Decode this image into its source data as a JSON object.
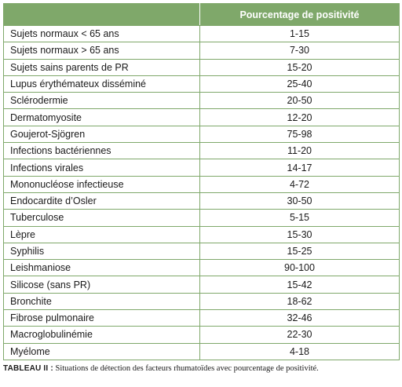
{
  "table": {
    "headers": [
      "",
      "Pourcentage de positivité"
    ],
    "rows": [
      {
        "label": "Sujets normaux < 65 ans",
        "value": "1-15"
      },
      {
        "label": "Sujets normaux > 65 ans",
        "value": "7-30"
      },
      {
        "label": "Sujets sains parents de PR",
        "value": "15-20"
      },
      {
        "label": "Lupus érythémateux disséminé",
        "value": "25-40"
      },
      {
        "label": "Sclérodermie",
        "value": "20-50"
      },
      {
        "label": "Dermatomyosite",
        "value": "12-20"
      },
      {
        "label": "Goujerot-Sjögren",
        "value": "75-98"
      },
      {
        "label": "Infections bactériennes",
        "value": "11-20"
      },
      {
        "label": "Infections virales",
        "value": "14-17"
      },
      {
        "label": "Mononucléose infectieuse",
        "value": "4-72"
      },
      {
        "label": "Endocardite d’Osler",
        "value": "30-50"
      },
      {
        "label": "Tuberculose",
        "value": "5-15"
      },
      {
        "label": "Lèpre",
        "value": "15-30"
      },
      {
        "label": "Syphilis",
        "value": "15-25"
      },
      {
        "label": "Leishmaniose",
        "value": "90-100"
      },
      {
        "label": "Silicose (sans PR)",
        "value": "15-42"
      },
      {
        "label": "Bronchite",
        "value": "18-62"
      },
      {
        "label": "Fibrose pulmonaire",
        "value": "32-46"
      },
      {
        "label": "Macroglobulinémie",
        "value": "22-30"
      },
      {
        "label": "Myélome",
        "value": "4-18"
      }
    ]
  },
  "caption": {
    "label": "TABLEAU II :",
    "text": " Situations de détection des facteurs rhumatoïdes avec pourcentage de positivité."
  },
  "colors": {
    "header_bg": "#7fa86a",
    "border": "#7fa86a"
  }
}
